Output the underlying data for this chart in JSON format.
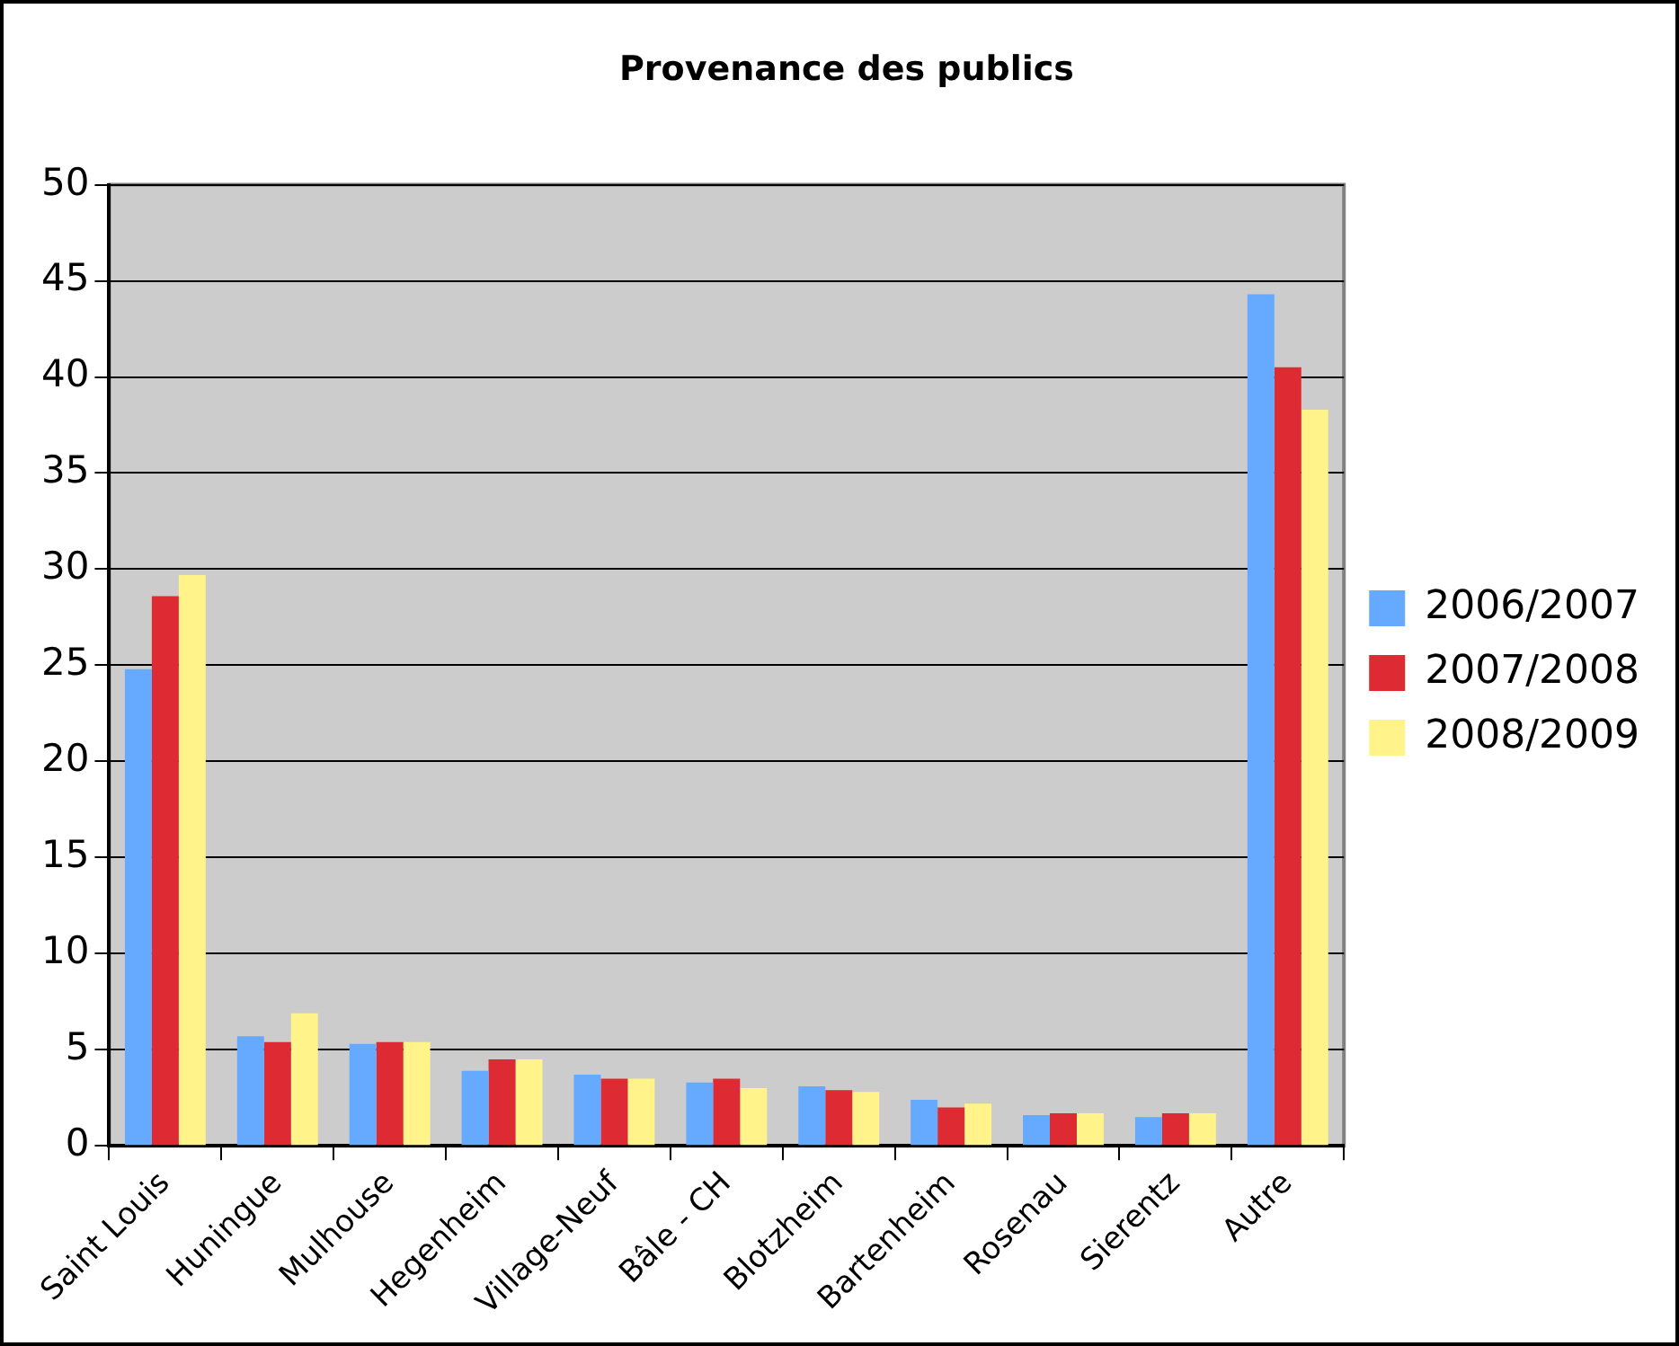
{
  "chart_data": {
    "type": "bar",
    "title": "Provenance des publics",
    "categories": [
      "Saint Louis",
      "Huningue",
      "Mulhouse",
      "Hegenheim",
      "Village-Neuf",
      "Bâle - CH",
      "Blotzheim",
      "Bartenheim",
      "Rosenau",
      "Sierentz",
      "Autre"
    ],
    "series": [
      {
        "name": "2006/2007",
        "color": "#66aaff",
        "values": [
          24.8,
          5.7,
          5.3,
          3.9,
          3.7,
          3.3,
          3.1,
          2.4,
          1.6,
          1.5,
          44.3
        ]
      },
      {
        "name": "2007/2008",
        "color": "#dd2a33",
        "values": [
          28.6,
          5.4,
          5.4,
          4.5,
          3.5,
          3.5,
          2.9,
          2.0,
          1.7,
          1.7,
          40.5
        ]
      },
      {
        "name": "2008/2009",
        "color": "#fff389",
        "values": [
          29.7,
          6.9,
          5.4,
          4.5,
          3.5,
          3.0,
          2.8,
          2.2,
          1.7,
          1.7,
          38.3
        ]
      }
    ],
    "ylim": [
      0,
      50
    ],
    "yticks": [
      0,
      5,
      10,
      15,
      20,
      25,
      30,
      35,
      40,
      45,
      50
    ],
    "grid": "y",
    "legend": "right"
  }
}
